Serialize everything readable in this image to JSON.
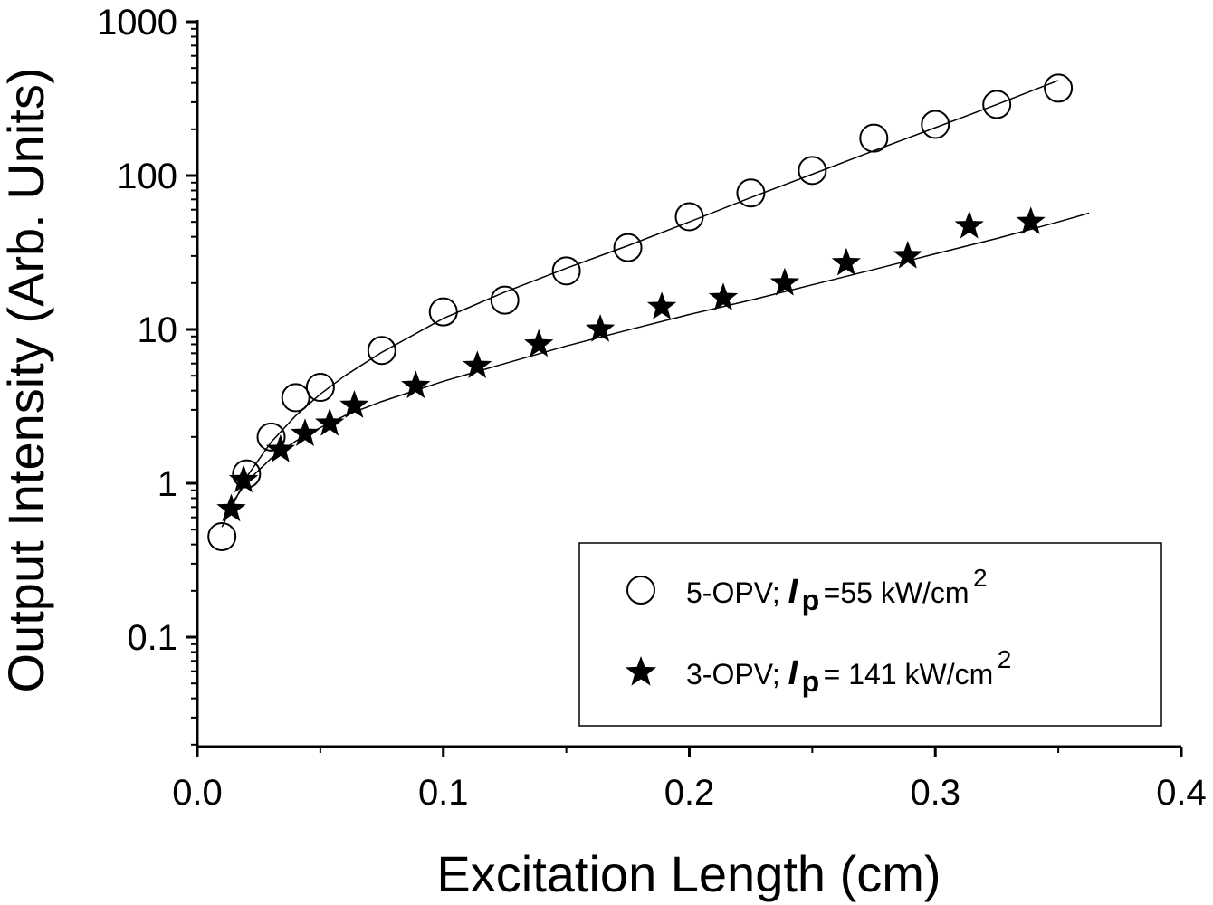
{
  "chart_data": {
    "type": "scatter",
    "title": "",
    "xlabel": "Excitation Length (cm)",
    "ylabel": "Output Intensity (Arb. Units)",
    "xlim": [
      0.0,
      0.4
    ],
    "ylim": [
      0.02,
      1000
    ],
    "yscale": "log",
    "xticks": [
      0.0,
      0.1,
      0.2,
      0.3,
      0.4
    ],
    "xtick_labels": [
      "0.0",
      "0.1",
      "0.2",
      "0.3",
      "0.4"
    ],
    "yticks": [
      0.1,
      1,
      10,
      100,
      1000
    ],
    "ytick_labels": [
      "0.1",
      "1",
      "10",
      "100",
      "1000"
    ],
    "legend_position": "bottom-right",
    "series": [
      {
        "name": "5-OPV",
        "label_prefix": "5-OPV; ",
        "label_symbol": "I",
        "label_subscript": "p",
        "label_value": " =55 kW/cm",
        "label_superscript": "2",
        "marker": "open-circle",
        "x": [
          0.01,
          0.02,
          0.03,
          0.04,
          0.05,
          0.075,
          0.1,
          0.125,
          0.15,
          0.175,
          0.2,
          0.225,
          0.25,
          0.275,
          0.3,
          0.325,
          0.35
        ],
        "y": [
          0.45,
          1.15,
          2.0,
          3.6,
          4.2,
          7.3,
          13,
          15.5,
          24,
          34,
          54,
          77,
          108,
          175,
          215,
          290,
          370
        ],
        "fit": {
          "x": [
            0.01,
            0.02,
            0.03,
            0.04,
            0.05,
            0.06,
            0.075,
            0.1,
            0.125,
            0.15,
            0.175,
            0.2,
            0.225,
            0.25,
            0.275,
            0.3,
            0.325,
            0.35
          ],
          "y": [
            0.52,
            1.1,
            1.85,
            2.75,
            3.8,
            5.0,
            7.1,
            11.8,
            17.5,
            25,
            35,
            50,
            72,
            102,
            145,
            205,
            290,
            415
          ]
        }
      },
      {
        "name": "3-OPV",
        "label_prefix": "3-OPV; ",
        "label_symbol": "I",
        "label_subscript": "p",
        "label_value": " = 141 kW/cm",
        "label_superscript": "2",
        "marker": "filled-star",
        "x": [
          0.0138,
          0.0188,
          0.0338,
          0.0438,
          0.0538,
          0.0638,
          0.0888,
          0.1138,
          0.1388,
          0.1638,
          0.1888,
          0.2138,
          0.2388,
          0.2638,
          0.2888,
          0.3138,
          0.3388
        ],
        "y": [
          0.68,
          1.05,
          1.65,
          2.1,
          2.45,
          3.2,
          4.3,
          5.8,
          8.0,
          10,
          14,
          16,
          20,
          27,
          30,
          47,
          50
        ],
        "fit": {
          "x": [
            0.012,
            0.02,
            0.03,
            0.04,
            0.05,
            0.06,
            0.075,
            0.1,
            0.125,
            0.15,
            0.175,
            0.2,
            0.225,
            0.25,
            0.275,
            0.3,
            0.325,
            0.35,
            0.3625
          ],
          "y": [
            0.66,
            1.02,
            1.45,
            1.88,
            2.3,
            2.75,
            3.4,
            4.6,
            6.0,
            7.8,
            9.9,
            12.5,
            15.5,
            19.5,
            24.5,
            31,
            39,
            50,
            57
          ]
        }
      }
    ]
  }
}
